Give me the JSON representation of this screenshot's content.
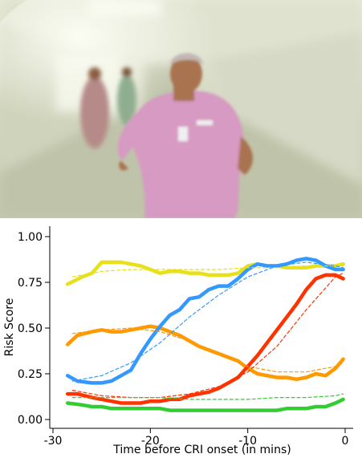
{
  "photo": {
    "subject": "nurse in pink scrubs running down a hospital corridor",
    "colors": {
      "wall": "#d9dcc8",
      "floor": "#c8cbb4",
      "scrubs": "#d79ac2",
      "skin": "#a9734f",
      "light": "#f4f6ea"
    }
  },
  "chart_data": {
    "type": "line",
    "title": "",
    "xlabel": "Time before CRI onset (in mins)",
    "ylabel": "Risk Score",
    "xlim": [
      -30,
      0
    ],
    "ylim": [
      0,
      1.0
    ],
    "x_ticks": [
      -30,
      -20,
      -10,
      0
    ],
    "x_tick_labels": [
      "-30",
      "-20",
      "-10",
      "0"
    ],
    "y_ticks": [
      0,
      0.25,
      0.5,
      0.75,
      1.0
    ],
    "y_tick_labels": [
      "0.00",
      "0.25",
      "0.50",
      "0.75",
      "1.00"
    ],
    "grid": false,
    "legend": "none",
    "series": [
      {
        "color": "#e8e01a",
        "style": "solid",
        "x": [
          -28.5,
          -27,
          -26,
          -25,
          -24,
          -23,
          -22,
          -21,
          -20,
          -19,
          -18,
          -17,
          -16,
          -15,
          -14,
          -13,
          -12,
          -11,
          -10,
          -9,
          -8,
          -7,
          -6,
          -5,
          -4,
          -3,
          -2,
          -1,
          -0.2
        ],
        "y": [
          0.74,
          0.78,
          0.8,
          0.86,
          0.86,
          0.86,
          0.85,
          0.84,
          0.82,
          0.8,
          0.81,
          0.81,
          0.8,
          0.8,
          0.79,
          0.79,
          0.79,
          0.8,
          0.84,
          0.85,
          0.84,
          0.84,
          0.83,
          0.83,
          0.83,
          0.84,
          0.84,
          0.84,
          0.85
        ]
      },
      {
        "color": "#e8e01a",
        "style": "dashed",
        "x": [
          -28,
          -25,
          -22,
          -19,
          -16,
          -13,
          -10,
          -7,
          -4,
          -1,
          -0.2
        ],
        "y": [
          0.78,
          0.81,
          0.82,
          0.82,
          0.82,
          0.82,
          0.83,
          0.83,
          0.84,
          0.84,
          0.84
        ]
      },
      {
        "color": "#ff9900",
        "style": "solid",
        "x": [
          -28.5,
          -27.5,
          -26,
          -25,
          -24,
          -23,
          -22,
          -21,
          -20,
          -19,
          -18,
          -17,
          -16,
          -15,
          -14,
          -13,
          -12,
          -11,
          -10,
          -9,
          -8,
          -7,
          -6,
          -5,
          -4,
          -3,
          -2,
          -1,
          -0.2
        ],
        "y": [
          0.41,
          0.46,
          0.48,
          0.49,
          0.48,
          0.48,
          0.49,
          0.5,
          0.51,
          0.5,
          0.48,
          0.46,
          0.43,
          0.4,
          0.38,
          0.36,
          0.34,
          0.32,
          0.28,
          0.25,
          0.24,
          0.23,
          0.23,
          0.22,
          0.23,
          0.25,
          0.24,
          0.28,
          0.33
        ]
      },
      {
        "color": "#ff9900",
        "style": "dashed",
        "x": [
          -28,
          -25,
          -22,
          -19,
          -16,
          -13,
          -10,
          -7,
          -4,
          -1,
          -0.2
        ],
        "y": [
          0.47,
          0.49,
          0.5,
          0.48,
          0.43,
          0.36,
          0.29,
          0.26,
          0.26,
          0.29,
          0.31
        ]
      },
      {
        "color": "#3399ff",
        "style": "solid",
        "x": [
          -28.5,
          -27.5,
          -26,
          -25,
          -24,
          -23,
          -22,
          -21,
          -20,
          -19,
          -18,
          -17,
          -16,
          -15,
          -14,
          -13,
          -12,
          -11,
          -10,
          -9,
          -8,
          -7,
          -6,
          -5,
          -4,
          -3,
          -2,
          -1,
          -0.2
        ],
        "y": [
          0.24,
          0.21,
          0.2,
          0.2,
          0.21,
          0.24,
          0.27,
          0.36,
          0.44,
          0.51,
          0.57,
          0.6,
          0.66,
          0.67,
          0.71,
          0.73,
          0.73,
          0.77,
          0.82,
          0.85,
          0.84,
          0.84,
          0.85,
          0.87,
          0.88,
          0.87,
          0.84,
          0.82,
          0.82
        ]
      },
      {
        "color": "#3399ff",
        "style": "dashed",
        "x": [
          -28,
          -25,
          -22,
          -19,
          -16,
          -13,
          -10,
          -7,
          -4,
          -1,
          -0.2
        ],
        "y": [
          0.21,
          0.24,
          0.31,
          0.42,
          0.56,
          0.68,
          0.78,
          0.84,
          0.86,
          0.84,
          0.83
        ]
      },
      {
        "color": "#ff3300",
        "style": "solid",
        "x": [
          -28.5,
          -27.5,
          -26,
          -25,
          -24,
          -23,
          -22,
          -21,
          -20,
          -19,
          -18,
          -17,
          -16,
          -15,
          -14,
          -13,
          -12,
          -11,
          -10,
          -9,
          -8,
          -7,
          -6,
          -5,
          -4,
          -3,
          -2,
          -1,
          -0.2
        ],
        "y": [
          0.14,
          0.14,
          0.12,
          0.11,
          0.1,
          0.09,
          0.09,
          0.09,
          0.1,
          0.1,
          0.11,
          0.11,
          0.13,
          0.14,
          0.15,
          0.17,
          0.2,
          0.23,
          0.29,
          0.35,
          0.42,
          0.49,
          0.56,
          0.63,
          0.71,
          0.77,
          0.79,
          0.79,
          0.77
        ]
      },
      {
        "color": "#ff3300",
        "style": "dashed",
        "x": [
          -28,
          -25,
          -22,
          -19,
          -16,
          -13,
          -10,
          -7,
          -4,
          -1,
          -0.2
        ],
        "y": [
          0.16,
          0.13,
          0.12,
          0.12,
          0.14,
          0.18,
          0.26,
          0.4,
          0.6,
          0.78,
          0.8
        ]
      },
      {
        "color": "#33cc33",
        "style": "solid",
        "x": [
          -28.5,
          -27,
          -26,
          -25,
          -24,
          -23,
          -22,
          -21,
          -20,
          -19,
          -18,
          -17,
          -16,
          -15,
          -14,
          -13,
          -12,
          -11,
          -10,
          -9,
          -8,
          -7,
          -6,
          -5,
          -4,
          -3,
          -2,
          -1,
          -0.2
        ],
        "y": [
          0.09,
          0.08,
          0.07,
          0.07,
          0.06,
          0.06,
          0.06,
          0.06,
          0.06,
          0.06,
          0.05,
          0.05,
          0.05,
          0.05,
          0.05,
          0.05,
          0.05,
          0.05,
          0.05,
          0.05,
          0.05,
          0.05,
          0.06,
          0.06,
          0.06,
          0.07,
          0.07,
          0.09,
          0.11
        ]
      },
      {
        "color": "#33cc33",
        "style": "dashed",
        "x": [
          -28,
          -25,
          -22,
          -19,
          -16,
          -13,
          -10,
          -7,
          -4,
          -1,
          -0.2
        ],
        "y": [
          0.12,
          0.12,
          0.12,
          0.12,
          0.11,
          0.11,
          0.11,
          0.12,
          0.12,
          0.13,
          0.14
        ]
      }
    ]
  }
}
